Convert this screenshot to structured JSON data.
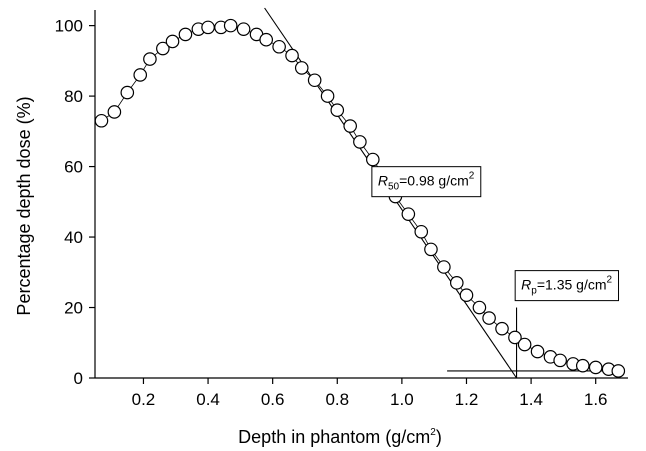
{
  "chart_data": {
    "type": "scatter",
    "xlabel": "Depth in phantom (g/cm",
    "xlabel_sup": "2",
    "xlabel_tail": ")",
    "ylabel": "Percentage depth dose (%)",
    "xlim": [
      0.05,
      1.7
    ],
    "ylim": [
      0,
      105
    ],
    "x_ticks": [
      0.2,
      0.4,
      0.6,
      0.8,
      1.0,
      1.2,
      1.4,
      1.6
    ],
    "x_tick_labels": [
      "0.2",
      "0.4",
      "0.6",
      "0.8",
      "1.0",
      "1.2",
      "1.4",
      "1.6"
    ],
    "y_ticks": [
      0,
      20,
      40,
      60,
      80,
      100
    ],
    "y_tick_labels": [
      "0",
      "20",
      "40",
      "60",
      "80",
      "100"
    ],
    "grid": false,
    "series": [
      {
        "marker": "open-circle",
        "x": [
          0.07,
          0.11,
          0.15,
          0.19,
          0.22,
          0.26,
          0.29,
          0.33,
          0.37,
          0.4,
          0.44,
          0.47,
          0.51,
          0.55,
          0.58,
          0.62,
          0.66,
          0.69,
          0.73,
          0.77,
          0.8,
          0.84,
          0.87,
          0.91,
          0.95,
          0.98,
          1.02,
          1.06,
          1.09,
          1.13,
          1.17,
          1.2,
          1.24,
          1.27,
          1.31,
          1.35,
          1.38,
          1.42,
          1.46,
          1.49,
          1.53,
          1.56,
          1.6,
          1.64,
          1.67
        ],
        "y": [
          73,
          75.5,
          81,
          86,
          90.5,
          93.5,
          95.5,
          97.5,
          99,
          99.5,
          99.5,
          100,
          99,
          97.5,
          96,
          94,
          91.5,
          88,
          84.5,
          80,
          76,
          71.5,
          67,
          62,
          56.5,
          51.5,
          46.5,
          41.5,
          36.5,
          31.5,
          27,
          23.5,
          20,
          17,
          14,
          11.5,
          9.5,
          7.5,
          6,
          5,
          4,
          3.5,
          3,
          2.5,
          2
        ]
      }
    ],
    "tangent_line": {
      "x": [
        0.575,
        1.355
      ],
      "y": [
        105,
        0
      ]
    },
    "baseline_line": {
      "x": [
        1.14,
        1.69
      ],
      "y": [
        2,
        2
      ]
    },
    "rp_marker_line": {
      "x": [
        1.355,
        1.355
      ],
      "y": [
        0,
        20
      ]
    },
    "annotations": [
      {
        "symbol": "R",
        "sub": "50",
        "text": "=0.98 g/cm",
        "sup": "2",
        "x": 1.075,
        "y": 56
      },
      {
        "symbol": "R",
        "sub": "p",
        "text": "=1.35 g/cm",
        "sup": "2",
        "x": 1.51,
        "y": 26.5
      }
    ]
  }
}
